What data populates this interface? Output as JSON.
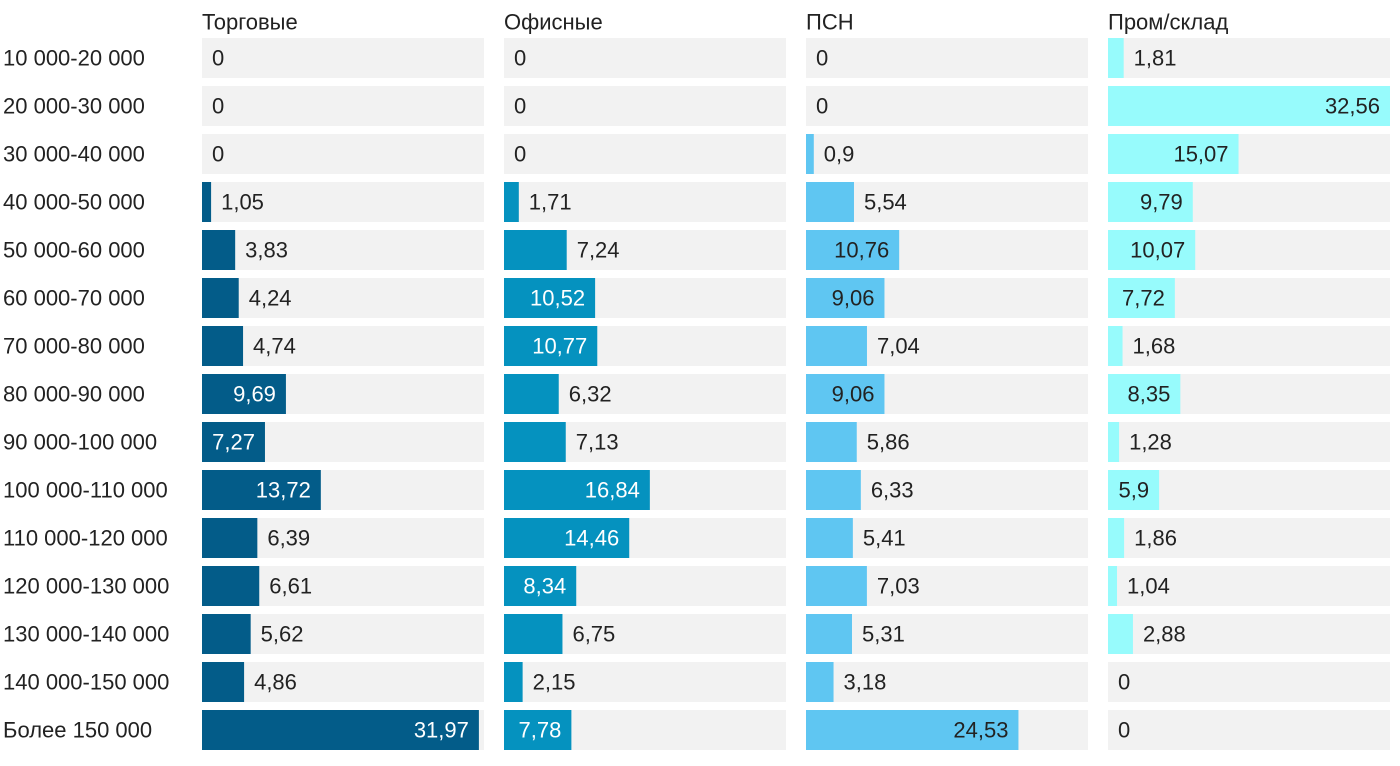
{
  "chart_data": {
    "type": "bar",
    "orientation": "horizontal",
    "layout": "small-multiples",
    "title": "",
    "xlabel": "",
    "ylabel": "",
    "xlim": [
      0,
      32.56
    ],
    "decimal_separator": ",",
    "categories": [
      "10 000-20 000",
      "20 000-30 000",
      "30 000-40 000",
      "40 000-50 000",
      "50 000-60 000",
      "60 000-70 000",
      "70 000-80 000",
      "80 000-90 000",
      "90 000-100 000",
      "100 000-110 000",
      "110 000-120 000",
      "120 000-130 000",
      "130 000-140 000",
      "140 000-150 000",
      "Более 150 000"
    ],
    "series": [
      {
        "name": "Торговые",
        "color": "#035c89",
        "label_inside_color": "#ffffff",
        "values": [
          0,
          0,
          0,
          1.05,
          3.83,
          4.24,
          4.74,
          9.69,
          7.27,
          13.72,
          6.39,
          6.61,
          5.62,
          4.86,
          31.97
        ]
      },
      {
        "name": "Офисные",
        "color": "#0592bf",
        "label_inside_color": "#ffffff",
        "values": [
          0,
          0,
          0,
          1.71,
          7.24,
          10.52,
          10.77,
          6.32,
          7.13,
          16.84,
          14.46,
          8.34,
          6.75,
          2.15,
          7.78
        ]
      },
      {
        "name": "ПСН",
        "color": "#5fc6f2",
        "label_inside_color": "#222222",
        "values": [
          0,
          0,
          0.9,
          5.54,
          10.76,
          9.06,
          7.04,
          9.06,
          5.86,
          6.33,
          5.41,
          7.03,
          5.31,
          3.18,
          24.53
        ]
      },
      {
        "name": "Пром/склад",
        "color": "#97fbfc",
        "label_inside_color": "#222222",
        "values": [
          1.81,
          32.56,
          15.07,
          9.79,
          10.07,
          7.72,
          1.68,
          8.35,
          1.28,
          5.9,
          1.86,
          1.04,
          2.88,
          0,
          0
        ]
      }
    ],
    "track_color": "#f2f2f2"
  }
}
